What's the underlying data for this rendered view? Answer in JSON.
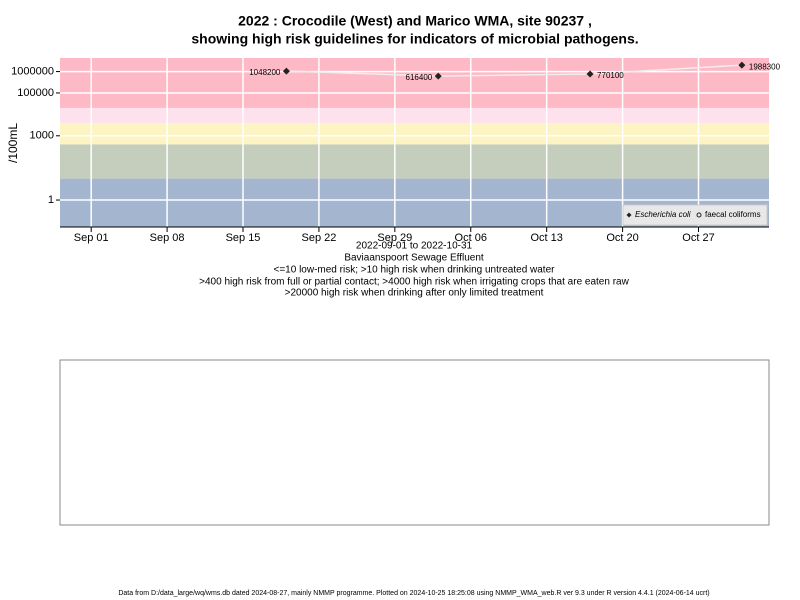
{
  "chart_data": {
    "type": "line",
    "title": "2022 : Crocodile (West) and Marico WMA, site 90237 ,",
    "subtitle": "showing high risk guidelines for indicators of microbial pathogens.",
    "y_label": "/100mL",
    "x_label": "2022-09-01 to 2022-10-31",
    "site": "Baviaanspoort Sewage Effluent",
    "notes": [
      "<=10 low-med risk; >10 high risk when drinking untreated water",
      ">400 high risk from full or partial contact; >4000 high risk when irrigating crops that are eaten raw",
      ">20000 high risk when drinking after only limited treatment"
    ],
    "footer": "Data from D:/data_large/wq/wms.db dated 2024-08-27, mainly NMMP programme. Plotted on 2024-10-25 18:25:08 using NMMP_WMA_web.R ver 9.3 under R version 4.4.1 (2024-06-14 ucrt)",
    "x": [
      "2022-09-19",
      "2022-10-03",
      "2022-10-17",
      "2022-10-31"
    ],
    "series": [
      {
        "name": "Escherichia coli",
        "color": "#222222",
        "marker": "diamond",
        "values": [
          1048200,
          616400,
          770100,
          1988300
        ]
      },
      {
        "name": "faecal coliforms",
        "color": "#222222",
        "marker": "open-circle",
        "values": [
          null,
          null,
          null,
          null
        ]
      }
    ],
    "line_color": "#eeeeee",
    "xlim": [
      "2022-08-29T03:00",
      "2022-11-02T12:00"
    ],
    "xticks": [
      {
        "value": "2022-09-01",
        "label": "Sep 01"
      },
      {
        "value": "2022-09-08",
        "label": "Sep 08"
      },
      {
        "value": "2022-09-15",
        "label": "Sep 15"
      },
      {
        "value": "2022-09-22",
        "label": "Sep 22"
      },
      {
        "value": "2022-09-29",
        "label": "Sep 29"
      },
      {
        "value": "2022-10-06",
        "label": "Oct 06"
      },
      {
        "value": "2022-10-13",
        "label": "Oct 13"
      },
      {
        "value": "2022-10-20",
        "label": "Oct 20"
      },
      {
        "value": "2022-10-27",
        "label": "Oct 27"
      }
    ],
    "ylim": [
      0.055,
      4300000
    ],
    "yticks": [
      1,
      1000,
      100000,
      1000000
    ],
    "log_y": true,
    "grid": true,
    "band_thresholds": [
      10,
      400,
      4000,
      20000
    ],
    "band_colors": [
      "#a3b5cf",
      "#c5cdbd",
      "#fcf5c3",
      "#fde1ec",
      "#feb9c6"
    ],
    "legend": "bottom-right"
  }
}
